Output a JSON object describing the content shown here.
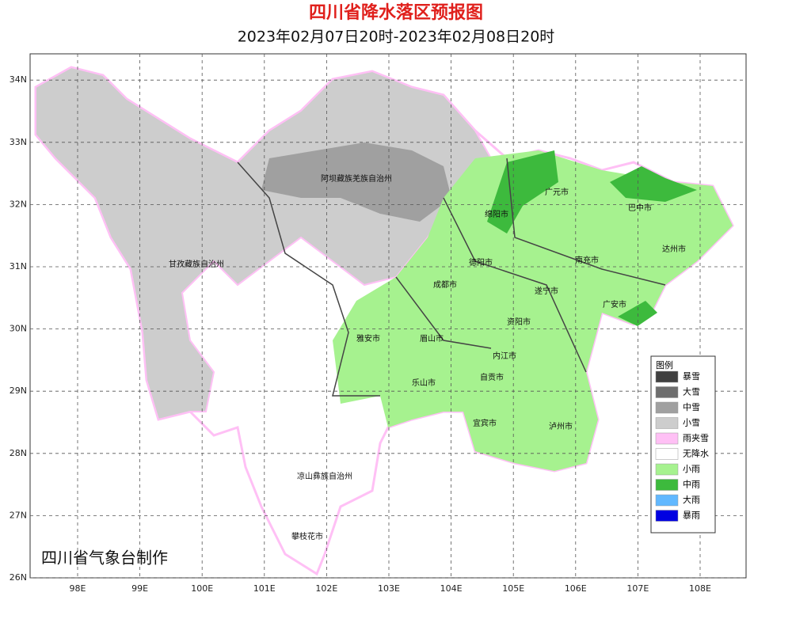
{
  "title": "四川省降水落区预报图",
  "subtitle": "2023年02月07日20时-2023年02月08日20时",
  "lat_ticks": [
    {
      "value": 34,
      "label": "34N"
    },
    {
      "value": 33,
      "label": "33N"
    },
    {
      "value": 32,
      "label": "32N"
    },
    {
      "value": 31,
      "label": "31N"
    },
    {
      "value": 30,
      "label": "30N"
    },
    {
      "value": 29,
      "label": "29N"
    },
    {
      "value": 28,
      "label": "28N"
    },
    {
      "value": 27,
      "label": "27N"
    },
    {
      "value": 26,
      "label": "26N"
    }
  ],
  "lon_ticks": [
    {
      "value": 98,
      "label": "98E"
    },
    {
      "value": 99,
      "label": "99E"
    },
    {
      "value": 100,
      "label": "100E"
    },
    {
      "value": 101,
      "label": "101E"
    },
    {
      "value": 102,
      "label": "102E"
    },
    {
      "value": 103,
      "label": "103E"
    },
    {
      "value": 104,
      "label": "104E"
    },
    {
      "value": 105,
      "label": "105E"
    },
    {
      "value": 106,
      "label": "106E"
    },
    {
      "value": 107,
      "label": "107E"
    },
    {
      "value": 108,
      "label": "108E"
    }
  ],
  "places": [
    "阿坝藏族羌族自治州",
    "甘孜藏族自治州",
    "广元市",
    "巴中市",
    "绵阳市",
    "达州市",
    "德阳市",
    "南充市",
    "成都市",
    "遂宁市",
    "广安市",
    "雅安市",
    "眉山市",
    "资阳市",
    "内江市",
    "自贡市",
    "乐山市",
    "宜宾市",
    "泸州市",
    "凉山彝族自治州",
    "攀枝花市"
  ],
  "legend": {
    "title": "图例",
    "items": [
      {
        "label": "暴雪",
        "color": "#404040"
      },
      {
        "label": "大雪",
        "color": "#6e6e6e"
      },
      {
        "label": "中雪",
        "color": "#a0a0a0"
      },
      {
        "label": "小雪",
        "color": "#cdcdcd"
      },
      {
        "label": "雨夹雪",
        "color": "#ffc0f5"
      },
      {
        "label": "无降水",
        "color": "#ffffff"
      },
      {
        "label": "小雨",
        "color": "#a6f28f"
      },
      {
        "label": "中雨",
        "color": "#3dba3d"
      },
      {
        "label": "大雨",
        "color": "#61b8ff"
      },
      {
        "label": "暴雨",
        "color": "#0000e1"
      }
    ]
  },
  "credit": "四川省气象台制作"
}
